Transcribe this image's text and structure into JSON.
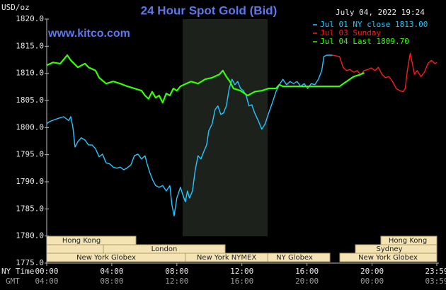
{
  "chart_data": {
    "type": "line",
    "title": "24 Hour Spot Gold (Bid)",
    "y_unit": "USD/oz",
    "timestamp": "July 04, 2022 19:24",
    "source": "www.kitco.com",
    "xlim": [
      0,
      23.98
    ],
    "ylim": [
      1775,
      1820
    ],
    "xticks": [
      {
        "value": 0,
        "label": "00:00"
      },
      {
        "value": 4,
        "label": "04:00"
      },
      {
        "value": 8,
        "label": "08:00"
      },
      {
        "value": 12,
        "label": "12:00"
      },
      {
        "value": 16,
        "label": "16:00"
      },
      {
        "value": 20,
        "label": "20:00"
      },
      {
        "value": 23.98,
        "label": "23:59"
      }
    ],
    "gmt_ticks": [
      "04:00",
      "08:00",
      "12:00",
      "16:00",
      "20:00",
      "00:00",
      "03:59"
    ],
    "x_axis_labels": [
      "NY Time",
      "GMT"
    ],
    "yticks": [
      {
        "value": 1775,
        "label": "1775.0"
      },
      {
        "value": 1780,
        "label": "1780.0"
      },
      {
        "value": 1785,
        "label": "1785.0"
      },
      {
        "value": 1790,
        "label": "1790.0"
      },
      {
        "value": 1795,
        "label": "1795.0"
      },
      {
        "value": 1800,
        "label": "1800.0"
      },
      {
        "value": 1805,
        "label": "1805.0"
      },
      {
        "value": 1810,
        "label": "1810.0"
      },
      {
        "value": 1815,
        "label": "1815.0"
      },
      {
        "value": 1820,
        "label": "1820.0"
      }
    ],
    "series": [
      {
        "name": "Jul 01 NY close 1813.00",
        "color": "#22c8ff",
        "x": [
          0,
          0.17,
          0.61,
          1.04,
          1.35,
          1.48,
          1.61,
          1.74,
          1.91,
          2.13,
          2.35,
          2.57,
          2.78,
          3.0,
          3.22,
          3.43,
          3.65,
          3.87,
          4.09,
          4.3,
          4.52,
          4.74,
          4.96,
          5.17,
          5.39,
          5.61,
          5.83,
          6.04,
          6.17,
          6.35,
          6.52,
          6.7,
          6.91,
          7.13,
          7.35,
          7.57,
          7.7,
          7.83,
          8.0,
          8.22,
          8.35,
          8.52,
          8.65,
          8.78,
          8.96,
          9.13,
          9.3,
          9.48,
          9.65,
          9.83,
          9.96,
          10.17,
          10.35,
          10.52,
          10.7,
          10.87,
          11.04,
          11.22,
          11.39,
          11.57,
          11.74,
          11.91,
          12.09,
          12.26,
          12.43,
          12.61,
          12.78,
          13.0,
          13.22,
          13.43,
          13.65,
          13.87,
          14.09,
          14.3,
          14.52,
          14.74,
          14.96,
          15.17,
          15.39,
          15.61,
          15.83,
          16.04,
          16.26,
          16.48,
          16.7,
          16.91,
          17.04,
          17.22,
          17.57
        ],
        "values": [
          1800.7,
          1801.1,
          1801.6,
          1802.0,
          1801.3,
          1802.0,
          1800.0,
          1796.4,
          1797.4,
          1798.1,
          1797.7,
          1796.8,
          1796.8,
          1796.1,
          1794.6,
          1795.1,
          1793.5,
          1793.3,
          1792.7,
          1792.5,
          1792.7,
          1792.2,
          1792.6,
          1793.1,
          1794.8,
          1795.1,
          1794.2,
          1794.8,
          1793.3,
          1791.6,
          1790.3,
          1789.3,
          1789.0,
          1789.3,
          1788.3,
          1789.3,
          1785.7,
          1783.7,
          1787.0,
          1789.0,
          1787.7,
          1786.3,
          1788.3,
          1787.0,
          1788.3,
          1792.2,
          1794.8,
          1794.2,
          1795.5,
          1796.8,
          1799.4,
          1800.7,
          1803.3,
          1804.0,
          1802.4,
          1802.7,
          1804.0,
          1807.2,
          1808.9,
          1807.9,
          1808.5,
          1807.2,
          1806.8,
          1805.9,
          1804.0,
          1804.2,
          1802.7,
          1801.3,
          1799.7,
          1800.7,
          1802.7,
          1804.6,
          1806.6,
          1807.9,
          1808.9,
          1807.9,
          1808.5,
          1808.1,
          1808.5,
          1807.6,
          1808.1,
          1807.2,
          1808.1,
          1807.9,
          1808.9,
          1810.5,
          1813.1,
          1813.35,
          1813.35
        ]
      },
      {
        "name": "Jul 03 Sunday",
        "color": "#ff1a1a",
        "x": [
          17.57,
          18.0,
          18.22,
          18.43,
          18.65,
          18.87,
          19.09,
          19.3,
          19.52,
          19.74,
          19.96,
          20.17,
          20.39,
          20.61,
          20.83,
          21.04,
          21.26,
          21.48,
          21.7,
          21.91,
          22.04,
          22.17,
          22.35,
          22.48,
          22.61,
          22.78,
          23.0,
          23.22,
          23.43,
          23.65,
          23.87,
          23.98
        ],
        "values": [
          1813.35,
          1813.1,
          1811.1,
          1810.5,
          1810.7,
          1810.2,
          1810.5,
          1809.8,
          1810.5,
          1810.7,
          1811.0,
          1810.5,
          1811.1,
          1809.8,
          1809.2,
          1809.4,
          1808.5,
          1807.2,
          1806.8,
          1806.6,
          1807.2,
          1810.5,
          1813.7,
          1811.8,
          1809.8,
          1810.5,
          1809.4,
          1810.2,
          1811.8,
          1812.4,
          1811.8,
          1812.0
        ]
      },
      {
        "name": "Jul 04 Last 1809.70",
        "color": "#33ff00",
        "x": [
          0,
          0.39,
          0.83,
          1.26,
          1.48,
          1.91,
          2.35,
          2.57,
          3.0,
          3.22,
          3.65,
          4.09,
          4.52,
          4.96,
          5.39,
          5.83,
          6.04,
          6.26,
          6.48,
          6.7,
          6.91,
          7.13,
          7.35,
          7.57,
          7.78,
          8.0,
          8.22,
          8.43,
          8.87,
          9.3,
          9.74,
          10.17,
          10.61,
          10.83,
          11.04,
          11.26,
          11.48,
          11.91,
          12.35,
          12.78,
          13.22,
          13.65,
          14.09,
          14.3,
          14.52,
          18.0,
          18.43,
          18.87,
          19.3,
          19.52
        ],
        "values": [
          1811.5,
          1812.0,
          1811.8,
          1813.35,
          1812.4,
          1811.1,
          1811.8,
          1811.1,
          1810.5,
          1809.2,
          1808.1,
          1808.5,
          1808.1,
          1807.6,
          1807.2,
          1806.8,
          1805.9,
          1805.3,
          1806.6,
          1805.5,
          1805.9,
          1804.6,
          1806.3,
          1805.9,
          1807.2,
          1806.8,
          1807.6,
          1807.9,
          1808.5,
          1808.1,
          1808.9,
          1809.2,
          1809.8,
          1810.5,
          1809.4,
          1808.5,
          1807.2,
          1806.8,
          1805.9,
          1806.6,
          1806.8,
          1807.2,
          1807.2,
          1807.9,
          1807.6,
          1807.6,
          1808.5,
          1809.4,
          1809.8,
          1810.1
        ]
      }
    ],
    "sessions": [
      "Hong Kong",
      "London",
      "New York Globex",
      "New York NYMEX",
      "NY Globex",
      "Hong Kong",
      "Sydney",
      "New York Globex"
    ],
    "grid": false
  }
}
